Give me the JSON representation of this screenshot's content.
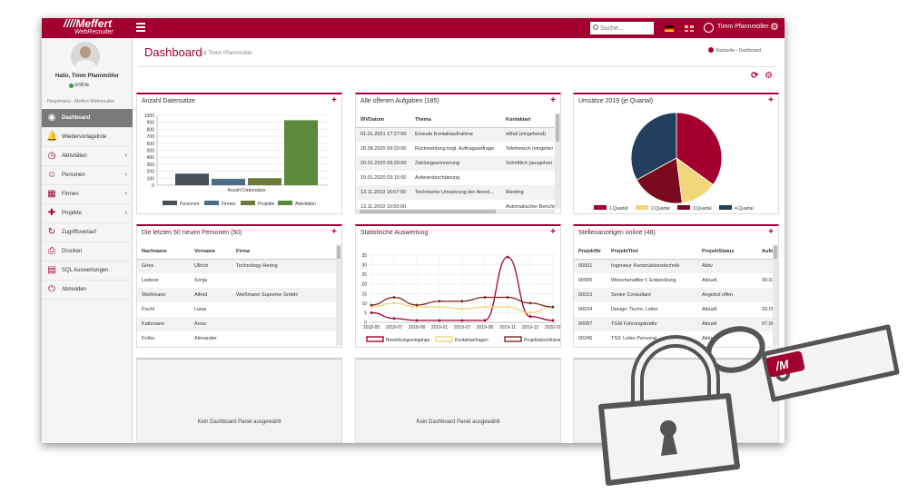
{
  "header": {
    "logo_line1": "////Meffert",
    "logo_line2": "WebRecruiter",
    "search_placeholder": "Suche...",
    "user_name": "Timm Pfannmöller"
  },
  "sidebar": {
    "greeting": "Hallo, Timm Pfannmöller",
    "status": "online",
    "section": "Hauptmenü - Meffert Webrecuiter",
    "items": [
      {
        "label": "Dashboard",
        "icon": "dashboard-icon",
        "active": true,
        "chevron": ""
      },
      {
        "label": "Wiedervorlageliste",
        "icon": "bell-icon",
        "active": false,
        "chevron": ""
      },
      {
        "label": "Aktivitäten",
        "icon": "clock-icon",
        "active": false,
        "chevron": "‹"
      },
      {
        "label": "Personen",
        "icon": "people-icon",
        "active": false,
        "chevron": "‹"
      },
      {
        "label": "Firmen",
        "icon": "building-icon",
        "active": false,
        "chevron": "‹"
      },
      {
        "label": "Projekte",
        "icon": "puzzle-icon",
        "active": false,
        "chevron": "‹"
      },
      {
        "label": "Zugriffsverlauf",
        "icon": "history-icon",
        "active": false,
        "chevron": ""
      },
      {
        "label": "Drucken",
        "icon": "print-icon",
        "active": false,
        "chevron": ""
      },
      {
        "label": "SQL Auswertungen",
        "icon": "document-icon",
        "active": false,
        "chevron": ""
      },
      {
        "label": "Abmelden",
        "icon": "power-icon",
        "active": false,
        "chevron": ""
      }
    ]
  },
  "page": {
    "title": "Dashboard",
    "subtitle": "für Timm Pfannmöller",
    "crumb_home": "Startseite",
    "crumb_sep": "›",
    "crumb_current": "Dashboard"
  },
  "panels": {
    "datensaetze": {
      "title": "Anzahl Datensätze"
    },
    "aufgaben": {
      "title": "Alle offenen Aufgaben (185)",
      "columns": [
        "WVDatum",
        "Thema",
        "Kontaktart"
      ],
      "rows": [
        [
          "01.01.2021 17:27:00",
          "Erneute Kontaktaufnahme",
          "eMail (eingehend)"
        ],
        [
          "28.08.2020 09:20:00",
          "Rückmeldung bzgl. Auftragsanfrage",
          "Telefonisch (eingeher"
        ],
        [
          "20.01.2020 09:20:00",
          "Zahlungserinnerung",
          "Schriftlich (ausgehen"
        ],
        [
          "19.01.2020 03:15:00",
          "Aufwandsschätzung",
          ""
        ],
        [
          "13.11.2019 16:07:00",
          "Technische Umsetzung der Anord...",
          "Meeting"
        ],
        [
          "13.11.2019 10:50:00",
          "",
          "Automatischer Bericht"
        ]
      ]
    },
    "umsaetze": {
      "title": "Umsätze 2019 (je Quartal)"
    },
    "personen": {
      "title": "Die letzten 50 neuen Personen (50)",
      "columns": [
        "Nachname",
        "Vorname",
        "Firma"
      ],
      "rows": [
        [
          "Gries",
          "Ullrich",
          "Technology Hering"
        ],
        [
          "Lederer",
          "Sonja",
          ""
        ],
        [
          "Weißmann",
          "Alfred",
          "Weißmann Supreme GmbH"
        ],
        [
          "Fischl",
          "Luisa",
          ""
        ],
        [
          "Kathmann",
          "Anna",
          ""
        ],
        [
          "Frühe",
          "Alexander",
          ""
        ]
      ]
    },
    "statistik": {
      "title": "Statistische Auswertung"
    },
    "stellen": {
      "title": "Stellenanzeigen online (48)",
      "columns": [
        "ProjektNr",
        "ProjektTitel",
        "ProjektStatus",
        "Aufträ"
      ],
      "rows": [
        [
          "00001",
          "Ingenieur Konstruktionstechnik",
          "Aktiv",
          ""
        ],
        [
          "00005",
          "Wisschenaftler f. Entwicklung",
          "Aktuell",
          "30.03"
        ],
        [
          "00015",
          "Senior Consultant",
          "Angebot offen",
          ""
        ],
        [
          "00034",
          "Design: Techn. Leiter",
          "Aktuell",
          "29.05"
        ],
        [
          "00097",
          "TGM Führungskräfte",
          "Aktuell",
          "07.06"
        ],
        [
          "00245",
          "TS3: Leiter Personal",
          "Aktuell",
          ""
        ]
      ]
    },
    "empty_message": "Kein Dashboard Panel ausgewählt"
  },
  "overlay": {
    "lock_tag_text": "/M"
  },
  "colors": {
    "brand": "#a3002f"
  },
  "chart_data": [
    {
      "type": "bar",
      "categories": [
        "Anzahl Datensätze"
      ],
      "series": [
        {
          "name": "Personen",
          "values": [
            165
          ],
          "color": "#454f56"
        },
        {
          "name": "Firmen",
          "values": [
            90
          ],
          "color": "#4a6e86"
        },
        {
          "name": "Projekte",
          "values": [
            100
          ],
          "color": "#6d7a3e"
        },
        {
          "name": "Aktivitäten",
          "values": [
            930
          ],
          "color": "#5c8a3c"
        }
      ],
      "yticks": [
        0,
        100,
        200,
        300,
        400,
        500,
        600,
        700,
        800,
        900,
        1000
      ],
      "ylim": [
        0,
        1000
      ],
      "grid": true,
      "legend": "bottom"
    },
    {
      "type": "pie",
      "slices": [
        {
          "name": "1.Quartal",
          "value": 35,
          "color": "#a3002f"
        },
        {
          "name": "2.Quartal",
          "value": 13,
          "color": "#f2d67a"
        },
        {
          "name": "3.Quartal",
          "value": 19,
          "color": "#7a0b1e"
        },
        {
          "name": "4.Quartal",
          "value": 33,
          "color": "#243f5e"
        }
      ],
      "legend": "bottom"
    },
    {
      "type": "line",
      "x": [
        "2018-05",
        "2018-07",
        "2018-08",
        "2019-01",
        "2019-07",
        "2019-08",
        "2019-11",
        "2019-12",
        "2020-01"
      ],
      "yticks": [
        0,
        5,
        10,
        15,
        20,
        25,
        30,
        35
      ],
      "ylim": [
        0,
        35
      ],
      "series": [
        {
          "name": "Bewerbungseingänge",
          "color": "#a3002f",
          "values": [
            5,
            2,
            1,
            1,
            1,
            1,
            34,
            3,
            1
          ]
        },
        {
          "name": "Kontaktanfragen",
          "color": "#f2d67a",
          "values": [
            8,
            10,
            8,
            8,
            7,
            8,
            8,
            5,
            8
          ]
        },
        {
          "name": "Projektabschlüsse",
          "color": "#7a2a1e",
          "values": [
            9,
            13,
            9,
            11,
            11,
            13,
            13,
            10,
            8
          ]
        }
      ],
      "grid": true,
      "legend": "bottom"
    }
  ]
}
